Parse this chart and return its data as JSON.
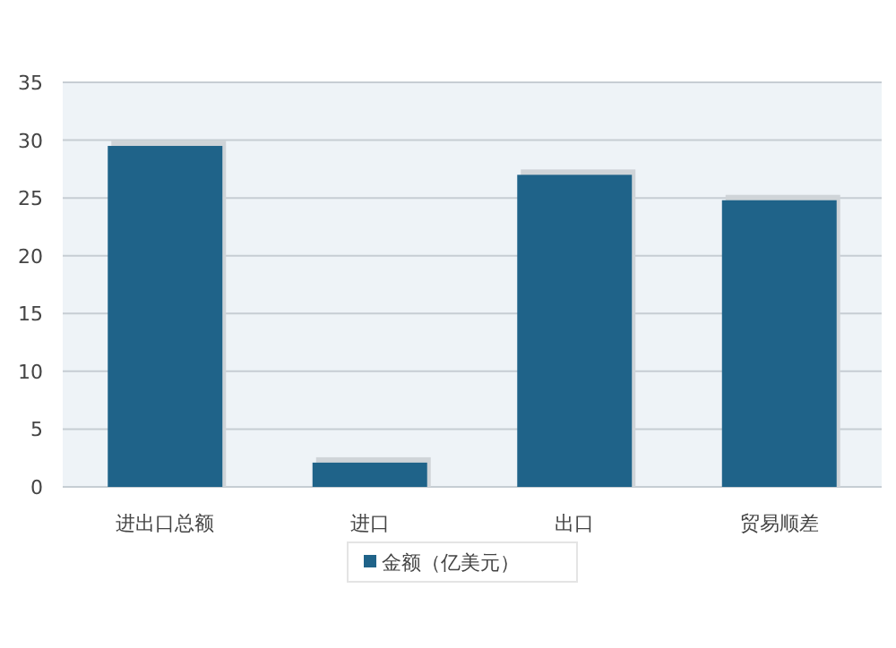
{
  "chart_data": {
    "type": "bar",
    "categories": [
      "进出口总额",
      "进口",
      "出口",
      "贸易顺差"
    ],
    "series": [
      {
        "name": "金额（亿美元）",
        "color": "#1f6389",
        "values": [
          29.5,
          2.1,
          27.0,
          24.8
        ]
      }
    ],
    "ylim": [
      0,
      35
    ],
    "yticks": [
      0,
      5,
      10,
      15,
      20,
      25,
      30,
      35
    ],
    "grid": "y",
    "legend": "bottom"
  }
}
